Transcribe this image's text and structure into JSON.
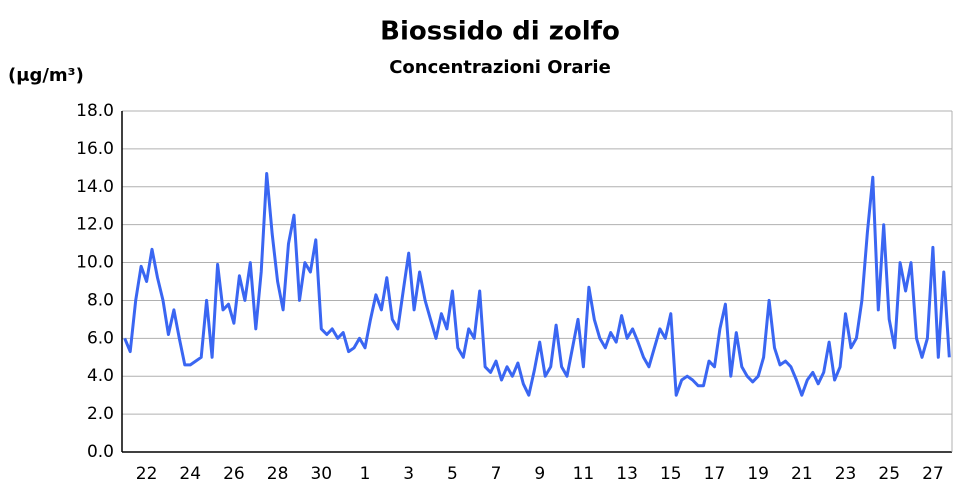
{
  "chart_data": {
    "type": "line",
    "title": "Biossido di zolfo",
    "subtitle": "Concentrazioni Orarie",
    "ylabel": "(μg/m³)",
    "categories": [
      null,
      null,
      null,
      null,
      "22",
      null,
      null,
      null,
      null,
      null,
      null,
      null,
      "24",
      null,
      null,
      null,
      null,
      null,
      null,
      null,
      "26",
      null,
      null,
      null,
      null,
      null,
      null,
      null,
      "28",
      null,
      null,
      null,
      null,
      null,
      null,
      null,
      "30",
      null,
      null,
      null,
      null,
      null,
      null,
      null,
      "1",
      null,
      null,
      null,
      null,
      null,
      null,
      null,
      "3",
      null,
      null,
      null,
      null,
      null,
      null,
      null,
      "5",
      null,
      null,
      null,
      null,
      null,
      null,
      null,
      "7",
      null,
      null,
      null,
      null,
      null,
      null,
      null,
      "9",
      null,
      null,
      null,
      null,
      null,
      null,
      null,
      "11",
      null,
      null,
      null,
      null,
      null,
      null,
      null,
      "13",
      null,
      null,
      null,
      null,
      null,
      null,
      null,
      "15",
      null,
      null,
      null,
      null,
      null,
      null,
      null,
      "17",
      null,
      null,
      null,
      null,
      null,
      null,
      null,
      "19",
      null,
      null,
      null,
      null,
      null,
      null,
      null,
      "21",
      null,
      null,
      null,
      null,
      null,
      null,
      null,
      "23",
      null,
      null,
      null,
      null,
      null,
      null,
      null,
      "25",
      null,
      null,
      null,
      null,
      null,
      null,
      null,
      "27",
      null,
      null,
      null
    ],
    "values": [
      6.0,
      5.3,
      8.0,
      9.8,
      9.0,
      10.7,
      9.2,
      8.0,
      6.2,
      7.5,
      6.0,
      4.6,
      4.6,
      4.8,
      5.0,
      8.0,
      5.0,
      9.9,
      7.5,
      7.8,
      6.8,
      9.3,
      8.0,
      10.0,
      6.5,
      9.5,
      14.7,
      11.5,
      9.0,
      7.5,
      11.0,
      12.5,
      8.0,
      10.0,
      9.5,
      11.2,
      6.5,
      6.2,
      6.5,
      6.0,
      6.3,
      5.3,
      5.5,
      6.0,
      5.5,
      7.0,
      8.3,
      7.5,
      9.2,
      7.0,
      6.5,
      8.5,
      10.5,
      7.5,
      9.5,
      8.0,
      7.0,
      6.0,
      7.3,
      6.5,
      8.5,
      5.5,
      5.0,
      6.5,
      6.0,
      8.5,
      4.5,
      4.2,
      4.8,
      3.8,
      4.5,
      4.0,
      4.7,
      3.6,
      3.0,
      4.3,
      5.8,
      4.0,
      4.5,
      6.7,
      4.5,
      4.0,
      5.5,
      7.0,
      4.5,
      8.7,
      7.0,
      6.0,
      5.5,
      6.3,
      5.8,
      7.2,
      6.0,
      6.5,
      5.8,
      5.0,
      4.5,
      5.5,
      6.5,
      6.0,
      7.3,
      3.0,
      3.8,
      4.0,
      3.8,
      3.5,
      3.5,
      4.8,
      4.5,
      6.5,
      7.8,
      4.0,
      6.3,
      4.5,
      4.0,
      3.7,
      4.0,
      5.0,
      8.0,
      5.5,
      4.6,
      4.8,
      4.5,
      3.8,
      3.0,
      3.8,
      4.2,
      3.6,
      4.2,
      5.8,
      3.8,
      4.5,
      7.3,
      5.5,
      6.0,
      8.0,
      11.6,
      14.5,
      7.5,
      12.0,
      7.0,
      5.5,
      10.0,
      8.5,
      10.0,
      6.0,
      5.0,
      6.0,
      10.8,
      5.0,
      9.5,
      5.0
    ],
    "color": "#3a66f2",
    "ylim": [
      0,
      18
    ],
    "yticks": [
      {
        "value": 0,
        "label": "0.0"
      },
      {
        "value": 2,
        "label": "2.0"
      },
      {
        "value": 4,
        "label": "4.0"
      },
      {
        "value": 6,
        "label": "6.0"
      },
      {
        "value": 8,
        "label": "8.0"
      },
      {
        "value": 10,
        "label": "10.0"
      },
      {
        "value": 12,
        "label": "12.0"
      },
      {
        "value": 14,
        "label": "14.0"
      },
      {
        "value": 16,
        "label": "16.0"
      },
      {
        "value": 18,
        "label": "18.0"
      }
    ],
    "grid": true
  }
}
